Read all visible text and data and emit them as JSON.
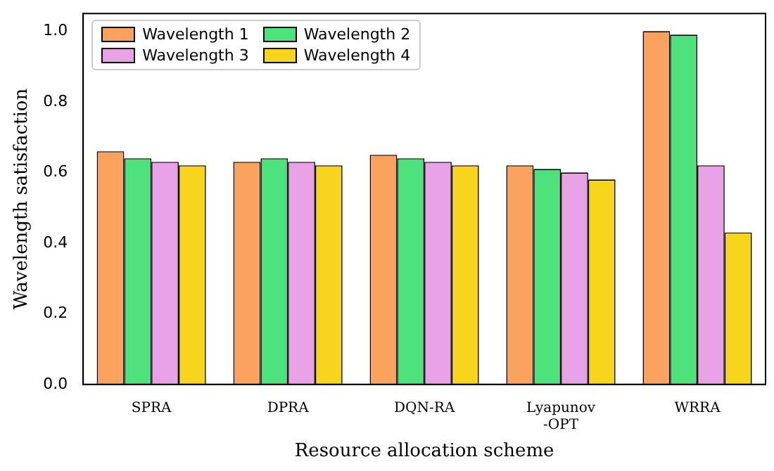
{
  "chart_data": {
    "type": "bar",
    "xlabel": "Resource allocation scheme",
    "ylabel": "Wavelength satisfaction",
    "categories": [
      "SPRA",
      "DPRA",
      "DQN-RA",
      "Lyapunov\n-OPT",
      "WRRA"
    ],
    "series": [
      {
        "name": "Wavelength 1",
        "color": "#fba35e",
        "values": [
          0.66,
          0.63,
          0.65,
          0.62,
          1.0
        ]
      },
      {
        "name": "Wavelength 2",
        "color": "#4de27c",
        "values": [
          0.64,
          0.64,
          0.64,
          0.61,
          0.99
        ]
      },
      {
        "name": "Wavelength 3",
        "color": "#eaa2e6",
        "values": [
          0.63,
          0.63,
          0.63,
          0.6,
          0.62
        ]
      },
      {
        "name": "Wavelength 4",
        "color": "#f7d51c",
        "values": [
          0.62,
          0.62,
          0.62,
          0.58,
          0.43
        ]
      }
    ],
    "ylim": [
      0,
      1.05
    ],
    "yticks": [
      {
        "value": 0,
        "label": "0.0"
      },
      0.2,
      0.4,
      0.6,
      0.8,
      {
        "value": 1,
        "label": "1.0"
      }
    ],
    "grid": false,
    "legend": "top left"
  }
}
